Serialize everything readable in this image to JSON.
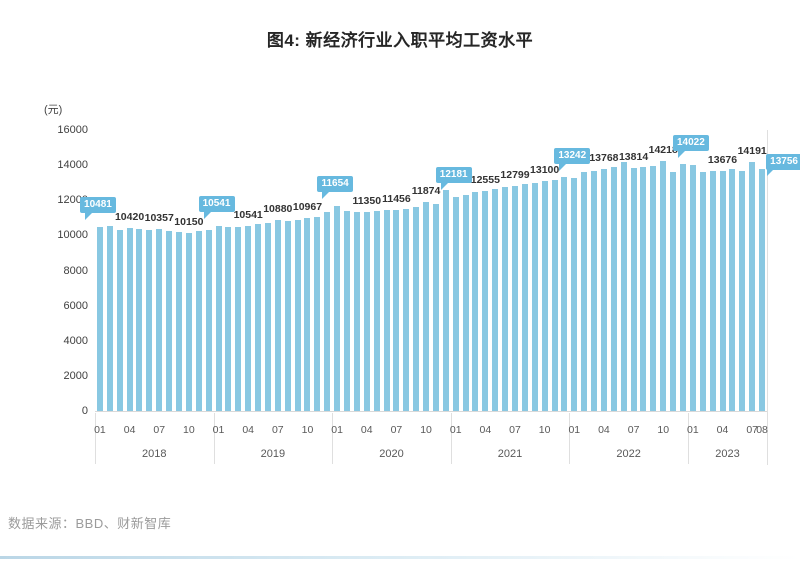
{
  "title": "图4: 新经济行业入职平均工资水平",
  "unit": "(元)",
  "source": "数据来源：BBD、财新智库",
  "colors": {
    "bar": "#89C8E2",
    "callout_bg": "#67B9DF",
    "callout_text": "#FFFFFF",
    "value_label": "#333333",
    "axis_text": "#595959",
    "baseline": "#D9D9D9",
    "separator": "#DFDFDF"
  },
  "chart_data": {
    "type": "bar",
    "title": "图4: 新经济行业入职平均工资水平",
    "xlabel": "",
    "ylabel": "(元)",
    "ylim": [
      0,
      16000
    ],
    "y_ticks": [
      0,
      2000,
      4000,
      6000,
      8000,
      10000,
      12000,
      14000,
      16000
    ],
    "grid": false,
    "legend": "none",
    "series_name": "新经济行业入职平均工资",
    "note": "values without printed labels are estimated from bar heights",
    "years": [
      {
        "year": "2018",
        "months": 12,
        "tick_months": [
          "01",
          "04",
          "07",
          "10"
        ]
      },
      {
        "year": "2019",
        "months": 12,
        "tick_months": [
          "01",
          "04",
          "07",
          "10"
        ]
      },
      {
        "year": "2020",
        "months": 12,
        "tick_months": [
          "01",
          "04",
          "07",
          "10"
        ]
      },
      {
        "year": "2021",
        "months": 12,
        "tick_months": [
          "01",
          "04",
          "07",
          "10"
        ]
      },
      {
        "year": "2022",
        "months": 12,
        "tick_months": [
          "01",
          "04",
          "07",
          "10"
        ]
      },
      {
        "year": "2023",
        "months": 8,
        "tick_months": [
          "01",
          "04",
          "07",
          "08"
        ]
      }
    ],
    "points": [
      {
        "month": "2018-01",
        "value": 10481,
        "label": "10481",
        "callout": true
      },
      {
        "month": "2018-02",
        "value": 10520
      },
      {
        "month": "2018-03",
        "value": 10290
      },
      {
        "month": "2018-04",
        "value": 10420,
        "label": "10420"
      },
      {
        "month": "2018-05",
        "value": 10380
      },
      {
        "month": "2018-06",
        "value": 10310
      },
      {
        "month": "2018-07",
        "value": 10357,
        "label": "10357"
      },
      {
        "month": "2018-08",
        "value": 10240
      },
      {
        "month": "2018-09",
        "value": 10190
      },
      {
        "month": "2018-10",
        "value": 10150,
        "label": "10150"
      },
      {
        "month": "2018-11",
        "value": 10230
      },
      {
        "month": "2018-12",
        "value": 10330
      },
      {
        "month": "2019-01",
        "value": 10541,
        "label": "10541",
        "callout": true
      },
      {
        "month": "2019-02",
        "value": 10480
      },
      {
        "month": "2019-03",
        "value": 10500
      },
      {
        "month": "2019-04",
        "value": 10541,
        "label": "10541"
      },
      {
        "month": "2019-05",
        "value": 10620
      },
      {
        "month": "2019-06",
        "value": 10710
      },
      {
        "month": "2019-07",
        "value": 10880,
        "label": "10880"
      },
      {
        "month": "2019-08",
        "value": 10840
      },
      {
        "month": "2019-09",
        "value": 10900
      },
      {
        "month": "2019-10",
        "value": 10967,
        "label": "10967"
      },
      {
        "month": "2019-11",
        "value": 11060
      },
      {
        "month": "2019-12",
        "value": 11320
      },
      {
        "month": "2020-01",
        "value": 11654,
        "label": "11654",
        "callout": true
      },
      {
        "month": "2020-02",
        "value": 11400
      },
      {
        "month": "2020-03",
        "value": 11330
      },
      {
        "month": "2020-04",
        "value": 11350,
        "label": "11350"
      },
      {
        "month": "2020-05",
        "value": 11400
      },
      {
        "month": "2020-06",
        "value": 11430
      },
      {
        "month": "2020-07",
        "value": 11456,
        "label": "11456"
      },
      {
        "month": "2020-08",
        "value": 11520
      },
      {
        "month": "2020-09",
        "value": 11640
      },
      {
        "month": "2020-10",
        "value": 11874,
        "label": "11874"
      },
      {
        "month": "2020-11",
        "value": 11760
      },
      {
        "month": "2020-12",
        "value": 12560
      },
      {
        "month": "2021-01",
        "value": 12181,
        "label": "12181",
        "callout": true
      },
      {
        "month": "2021-02",
        "value": 12320
      },
      {
        "month": "2021-03",
        "value": 12460
      },
      {
        "month": "2021-04",
        "value": 12555,
        "label": "12555"
      },
      {
        "month": "2021-05",
        "value": 12650
      },
      {
        "month": "2021-06",
        "value": 12730
      },
      {
        "month": "2021-07",
        "value": 12799,
        "label": "12799"
      },
      {
        "month": "2021-08",
        "value": 12900
      },
      {
        "month": "2021-09",
        "value": 13000
      },
      {
        "month": "2021-10",
        "value": 13100,
        "label": "13100"
      },
      {
        "month": "2021-11",
        "value": 13160
      },
      {
        "month": "2021-12",
        "value": 13310
      },
      {
        "month": "2022-01",
        "value": 13242,
        "label": "13242",
        "callout": true
      },
      {
        "month": "2022-02",
        "value": 13620
      },
      {
        "month": "2022-03",
        "value": 13690
      },
      {
        "month": "2022-04",
        "value": 13768,
        "label": "13768"
      },
      {
        "month": "2022-05",
        "value": 13900
      },
      {
        "month": "2022-06",
        "value": 14150
      },
      {
        "month": "2022-07",
        "value": 13814,
        "label": "13814"
      },
      {
        "month": "2022-08",
        "value": 13890
      },
      {
        "month": "2022-09",
        "value": 13960
      },
      {
        "month": "2022-10",
        "value": 14218,
        "label": "14218"
      },
      {
        "month": "2022-11",
        "value": 13590
      },
      {
        "month": "2022-12",
        "value": 14060
      },
      {
        "month": "2023-01",
        "value": 14022,
        "label": "14022",
        "callout": true
      },
      {
        "month": "2023-02",
        "value": 13590
      },
      {
        "month": "2023-03",
        "value": 13650
      },
      {
        "month": "2023-04",
        "value": 13676,
        "label": "13676"
      },
      {
        "month": "2023-05",
        "value": 13780
      },
      {
        "month": "2023-06",
        "value": 13690
      },
      {
        "month": "2023-07",
        "value": 14191,
        "label": "14191"
      },
      {
        "month": "2023-08",
        "value": 13756,
        "label": "13756",
        "callout": true,
        "callout_side": "right"
      }
    ]
  }
}
